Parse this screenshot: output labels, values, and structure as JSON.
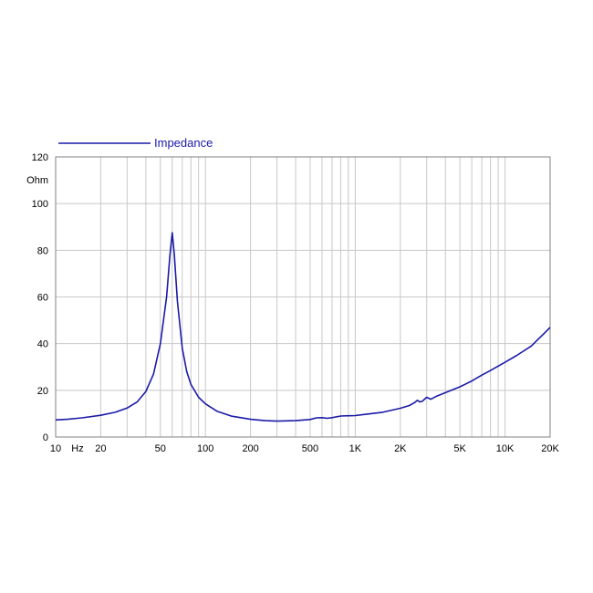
{
  "chart_data": {
    "type": "line",
    "xscale": "log",
    "xlim": [
      10,
      20000
    ],
    "ylim": [
      0,
      120
    ],
    "grid": true,
    "legend_position": "top-left",
    "ylabel": "Ohm",
    "xunit": "Hz",
    "x_tick_labels": [
      {
        "value": 10,
        "label": "10"
      },
      {
        "value": 20,
        "label": "20"
      },
      {
        "value": 50,
        "label": "50"
      },
      {
        "value": 100,
        "label": "100"
      },
      {
        "value": 200,
        "label": "200"
      },
      {
        "value": 500,
        "label": "500"
      },
      {
        "value": 1000,
        "label": "1K"
      },
      {
        "value": 2000,
        "label": "2K"
      },
      {
        "value": 5000,
        "label": "5K"
      },
      {
        "value": 10000,
        "label": "10K"
      },
      {
        "value": 20000,
        "label": "20K"
      }
    ],
    "y_ticks": [
      0,
      20,
      40,
      60,
      80,
      100,
      120
    ],
    "series": [
      {
        "name": "Impedance",
        "color": "#1a1aa8",
        "points": [
          [
            10,
            7.3
          ],
          [
            12,
            7.6
          ],
          [
            15,
            8.2
          ],
          [
            20,
            9.3
          ],
          [
            25,
            10.6
          ],
          [
            30,
            12.4
          ],
          [
            35,
            15.0
          ],
          [
            40,
            19.5
          ],
          [
            45,
            27.0
          ],
          [
            50,
            40.0
          ],
          [
            55,
            60.0
          ],
          [
            58,
            78.0
          ],
          [
            60,
            87.5
          ],
          [
            62,
            78.0
          ],
          [
            65,
            58.0
          ],
          [
            70,
            38.0
          ],
          [
            75,
            28.0
          ],
          [
            80,
            22.5
          ],
          [
            90,
            17.0
          ],
          [
            100,
            14.2
          ],
          [
            120,
            11.0
          ],
          [
            150,
            8.9
          ],
          [
            200,
            7.6
          ],
          [
            250,
            7.0
          ],
          [
            300,
            6.8
          ],
          [
            400,
            7.0
          ],
          [
            500,
            7.5
          ],
          [
            550,
            8.2
          ],
          [
            600,
            8.3
          ],
          [
            650,
            8.0
          ],
          [
            700,
            8.3
          ],
          [
            800,
            9.0
          ],
          [
            1000,
            9.2
          ],
          [
            1200,
            9.8
          ],
          [
            1500,
            10.5
          ],
          [
            2000,
            12.3
          ],
          [
            2300,
            13.5
          ],
          [
            2500,
            14.8
          ],
          [
            2600,
            15.7
          ],
          [
            2700,
            15.0
          ],
          [
            2800,
            15.3
          ],
          [
            3000,
            17.0
          ],
          [
            3200,
            16.2
          ],
          [
            3500,
            17.5
          ],
          [
            4000,
            19.0
          ],
          [
            5000,
            21.5
          ],
          [
            6000,
            24.0
          ],
          [
            7000,
            26.5
          ],
          [
            8000,
            28.5
          ],
          [
            10000,
            32.0
          ],
          [
            12000,
            35.0
          ],
          [
            15000,
            39.0
          ],
          [
            17000,
            42.5
          ],
          [
            18000,
            44.0
          ],
          [
            20000,
            47.0
          ]
        ]
      }
    ]
  }
}
